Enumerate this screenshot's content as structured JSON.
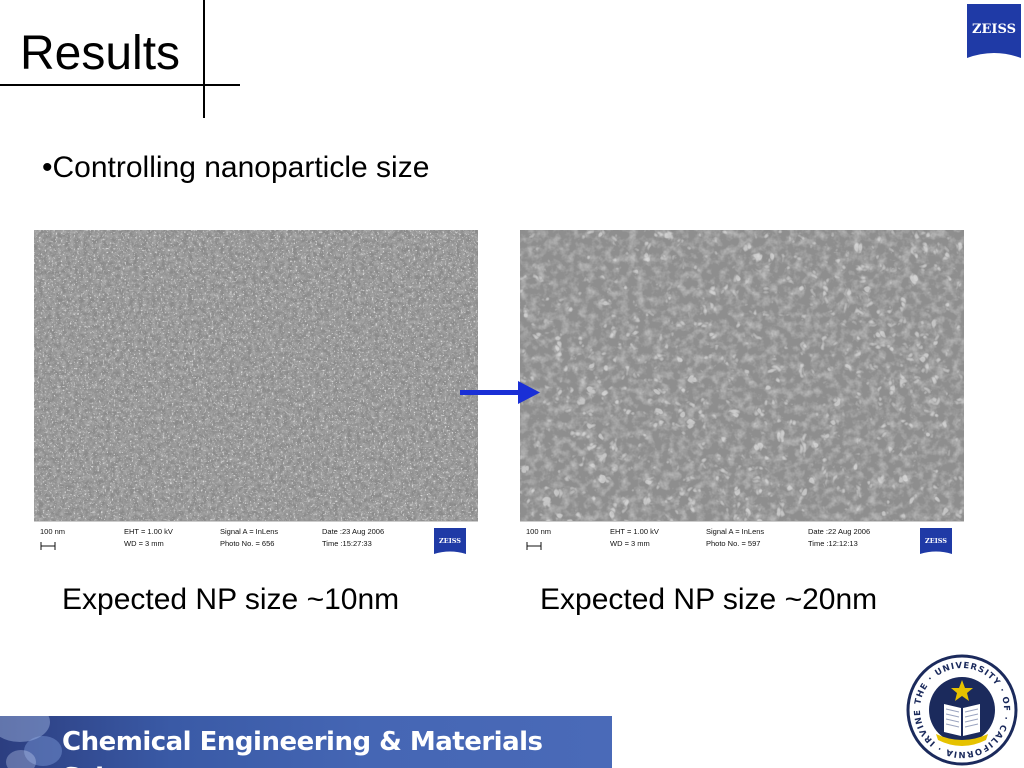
{
  "slide": {
    "title": "Results",
    "bullet": "•Controlling nanoparticle size",
    "footer_text": "Chemical Engineering & Materials Science",
    "zeiss_logo_text": "ZEISS",
    "seal_text": "THE · UNIVERSITY · OF · CALIFORNIA · IRVINE"
  },
  "images": [
    {
      "caption": "Expected NP size ~10nm",
      "scale": "100 nm",
      "eht": "EHT =  1.00 kV",
      "wd": "WD =    3 mm",
      "signal": "Signal A = InLens",
      "photo": "Photo No. = 656",
      "date": "Date :23 Aug 2006",
      "time": "Time :15:27:33",
      "brand": "ZEISS"
    },
    {
      "caption": "Expected NP size ~20nm",
      "scale": "100 nm",
      "eht": "EHT =  1.00 kV",
      "wd": "WD =    3 mm",
      "signal": "Signal A = InLens",
      "photo": "Photo No. = 597",
      "date": "Date :22 Aug 2006",
      "time": "Time :12:12:13",
      "brand": "ZEISS"
    }
  ],
  "colors": {
    "arrow": "#1a2fd6",
    "zeiss_blue": "#1f3aa6",
    "footer_blue": "#3a5aa6",
    "seal_navy": "#1b2a5c",
    "seal_gold": "#e6c200"
  }
}
